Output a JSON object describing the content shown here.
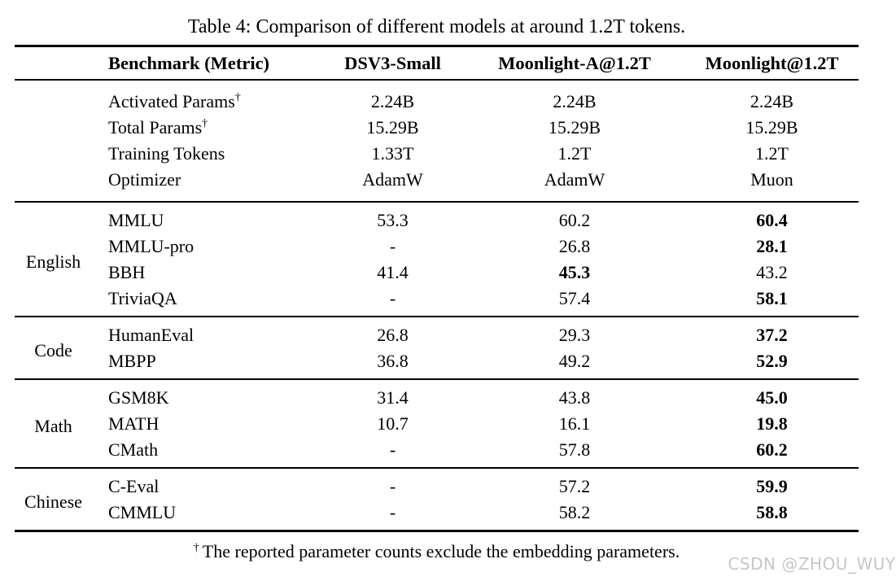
{
  "title": "Table 4: Comparison of different models at around 1.2T tokens.",
  "colors": {
    "background": "#ffffff",
    "text": "#000000",
    "rule": "#000000",
    "watermark": "#c7c7c7"
  },
  "header": {
    "benchmark_label": "Benchmark (Metric)",
    "models": [
      "DSV3-Small",
      "Moonlight-A@1.2T",
      "Moonlight@1.2T"
    ]
  },
  "groups": [
    {
      "label": "",
      "rows": [
        {
          "benchmark": "Activated Params",
          "sup": "†",
          "values": [
            "2.24B",
            "2.24B",
            "2.24B"
          ],
          "bold": null
        },
        {
          "benchmark": "Total Params",
          "sup": "†",
          "values": [
            "15.29B",
            "15.29B",
            "15.29B"
          ],
          "bold": null
        },
        {
          "benchmark": "Training Tokens",
          "values": [
            "1.33T",
            "1.2T",
            "1.2T"
          ],
          "bold": null
        },
        {
          "benchmark": "Optimizer",
          "values": [
            "AdamW",
            "AdamW",
            "Muon"
          ],
          "bold": null
        }
      ]
    },
    {
      "label": "English",
      "rows": [
        {
          "benchmark": "MMLU",
          "values": [
            "53.3",
            "60.2",
            "60.4"
          ],
          "bold": 2
        },
        {
          "benchmark": "MMLU-pro",
          "values": [
            "-",
            "26.8",
            "28.1"
          ],
          "bold": 2
        },
        {
          "benchmark": "BBH",
          "values": [
            "41.4",
            "45.3",
            "43.2"
          ],
          "bold": 1
        },
        {
          "benchmark": "TriviaQA",
          "values": [
            "-",
            "57.4",
            "58.1"
          ],
          "bold": 2
        }
      ]
    },
    {
      "label": "Code",
      "rows": [
        {
          "benchmark": "HumanEval",
          "values": [
            "26.8",
            "29.3",
            "37.2"
          ],
          "bold": 2
        },
        {
          "benchmark": "MBPP",
          "values": [
            "36.8",
            "49.2",
            "52.9"
          ],
          "bold": 2
        }
      ]
    },
    {
      "label": "Math",
      "rows": [
        {
          "benchmark": "GSM8K",
          "values": [
            "31.4",
            "43.8",
            "45.0"
          ],
          "bold": 2
        },
        {
          "benchmark": "MATH",
          "values": [
            "10.7",
            "16.1",
            "19.8"
          ],
          "bold": 2
        },
        {
          "benchmark": "CMath",
          "values": [
            "-",
            "57.8",
            "60.2"
          ],
          "bold": 2
        }
      ]
    },
    {
      "label": "Chinese",
      "rows": [
        {
          "benchmark": "C-Eval",
          "values": [
            "-",
            "57.2",
            "59.9"
          ],
          "bold": 2
        },
        {
          "benchmark": "CMMLU",
          "values": [
            "-",
            "58.2",
            "58.8"
          ],
          "bold": 2
        }
      ]
    }
  ],
  "footnote": {
    "marker": "†",
    "text": "The reported parameter counts exclude the embedding parameters."
  },
  "watermark": "CSDN @ZHOU_WUYI"
}
